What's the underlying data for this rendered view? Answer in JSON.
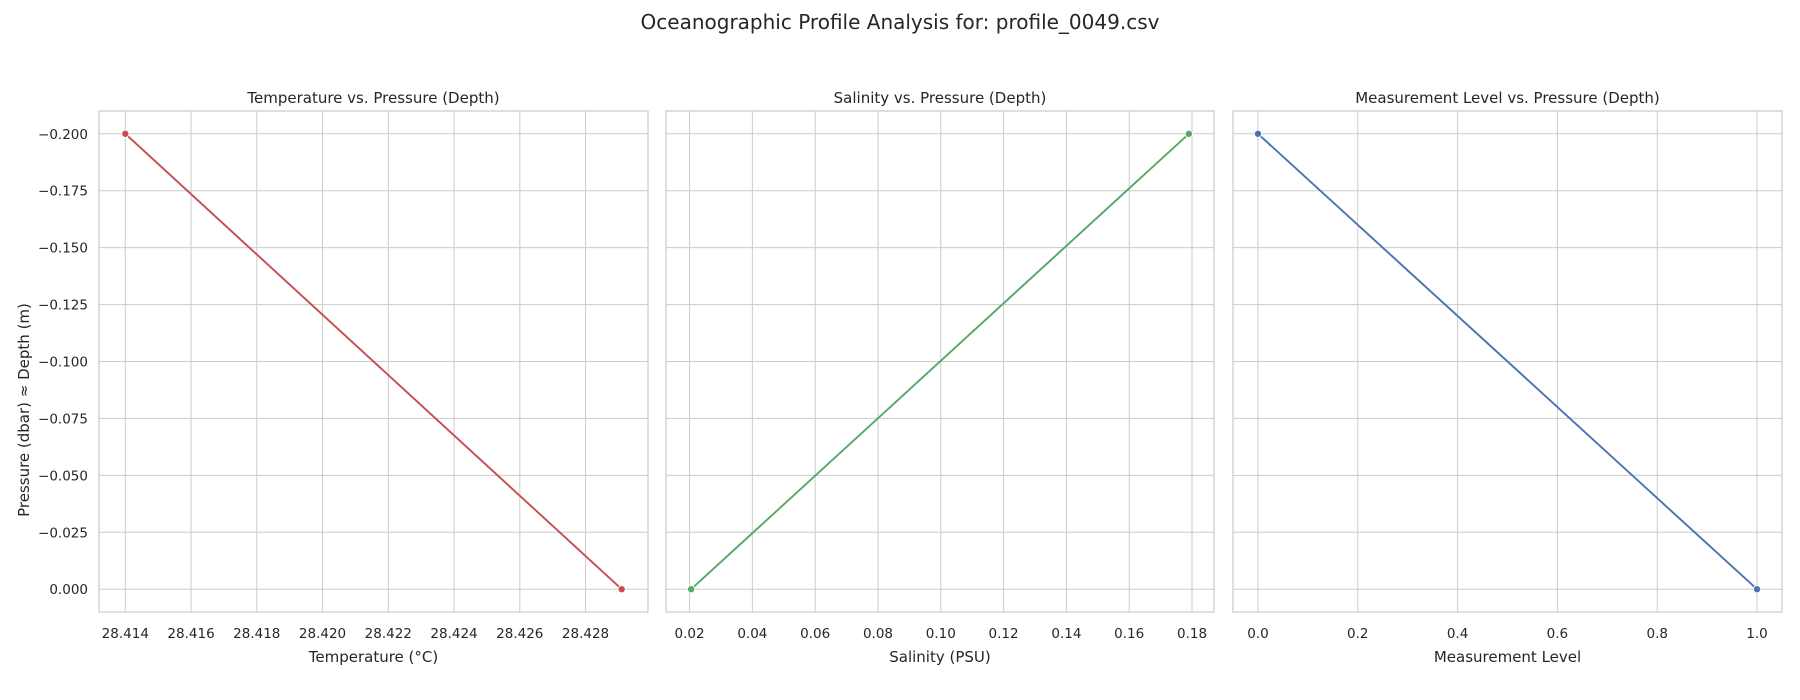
{
  "figure": {
    "title": "Oceanographic Profile Analysis for: profile_0049.csv",
    "shared_ylabel": "Pressure (dbar) ≈ Depth (m)"
  },
  "chart_data": [
    {
      "type": "line",
      "title": "Temperature vs. Pressure (Depth)",
      "xlabel": "Temperature (°C)",
      "ylabel": "Pressure (dbar) ≈ Depth (m)",
      "x": [
        28.414,
        28.4291
      ],
      "y": [
        -0.2,
        0.0
      ],
      "xlim": [
        28.4132,
        28.4299
      ],
      "ylim": [
        0.01,
        -0.21
      ],
      "y_inverted": true,
      "xticks": [
        "28.414",
        "28.416",
        "28.418",
        "28.420",
        "28.422",
        "28.424",
        "28.426",
        "28.428"
      ],
      "xtick_values": [
        28.414,
        28.416,
        28.418,
        28.42,
        28.422,
        28.424,
        28.426,
        28.428
      ],
      "yticks": [
        "0.000",
        "−0.025",
        "−0.050",
        "−0.075",
        "−0.100",
        "−0.125",
        "−0.150",
        "−0.175",
        "−0.200"
      ],
      "ytick_values": [
        0.0,
        -0.025,
        -0.05,
        -0.075,
        -0.1,
        -0.125,
        -0.15,
        -0.175,
        -0.2
      ],
      "color": "#c44e52",
      "markers": true,
      "grid": true
    },
    {
      "type": "line",
      "title": "Salinity vs. Pressure (Depth)",
      "xlabel": "Salinity (PSU)",
      "x": [
        0.0205,
        0.179
      ],
      "y": [
        0.0,
        -0.2
      ],
      "xlim": [
        0.0125,
        0.187
      ],
      "ylim": [
        0.01,
        -0.21
      ],
      "y_inverted": true,
      "xticks": [
        "0.02",
        "0.04",
        "0.06",
        "0.08",
        "0.10",
        "0.12",
        "0.14",
        "0.16",
        "0.18"
      ],
      "xtick_values": [
        0.02,
        0.04,
        0.06,
        0.08,
        0.1,
        0.12,
        0.14,
        0.16,
        0.18
      ],
      "ytick_values": [
        0.0,
        -0.025,
        -0.05,
        -0.075,
        -0.1,
        -0.125,
        -0.15,
        -0.175,
        -0.2
      ],
      "color": "#55a868",
      "markers": true,
      "grid": true
    },
    {
      "type": "line",
      "title": "Measurement Level vs. Pressure (Depth)",
      "xlabel": "Measurement Level",
      "x": [
        0.0,
        1.0
      ],
      "y": [
        -0.2,
        0.0
      ],
      "xlim": [
        -0.05,
        1.05
      ],
      "ylim": [
        0.01,
        -0.21
      ],
      "y_inverted": true,
      "xticks": [
        "0.0",
        "0.2",
        "0.4",
        "0.6",
        "0.8",
        "1.0"
      ],
      "xtick_values": [
        0.0,
        0.2,
        0.4,
        0.6,
        0.8,
        1.0
      ],
      "ytick_values": [
        0.0,
        -0.025,
        -0.05,
        -0.075,
        -0.1,
        -0.125,
        -0.15,
        -0.175,
        -0.2
      ],
      "color": "#4c72b0",
      "markers": true,
      "grid": true
    }
  ]
}
